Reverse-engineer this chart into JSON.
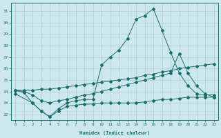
{
  "xlabel": "Humidex (Indice chaleur)",
  "bg_color": "#cde8ec",
  "grid_color": "#b0cdd2",
  "line_color": "#1a6e6a",
  "xlim": [
    -0.5,
    23.5
  ],
  "ylim": [
    21.5,
    31.7
  ],
  "xticks": [
    0,
    1,
    2,
    3,
    4,
    5,
    6,
    7,
    8,
    9,
    10,
    11,
    12,
    13,
    14,
    15,
    16,
    17,
    18,
    19,
    20,
    21,
    22,
    23
  ],
  "yticks": [
    22,
    23,
    24,
    25,
    26,
    27,
    28,
    29,
    30,
    31
  ],
  "series1_x": [
    0,
    1,
    2,
    3,
    4,
    5,
    6,
    7,
    8,
    9,
    10,
    11,
    12,
    13,
    14,
    15,
    16,
    17,
    18,
    19,
    20,
    21,
    22,
    23
  ],
  "series1_y": [
    24.1,
    23.9,
    23.0,
    22.3,
    21.8,
    22.5,
    23.0,
    23.2,
    23.3,
    23.3,
    26.3,
    27.0,
    27.6,
    28.6,
    30.3,
    30.6,
    31.2,
    29.3,
    27.4,
    25.6,
    24.5,
    23.8,
    23.7,
    23.7
  ],
  "series2_x": [
    0,
    1,
    2,
    3,
    4,
    5,
    6,
    7,
    8,
    9,
    10,
    11,
    12,
    13,
    14,
    15,
    16,
    17,
    18,
    19,
    20,
    21,
    22,
    23
  ],
  "series2_y": [
    24.1,
    24.1,
    24.1,
    24.2,
    24.2,
    24.3,
    24.4,
    24.5,
    24.6,
    24.7,
    24.8,
    24.9,
    25.0,
    25.1,
    25.2,
    25.4,
    25.5,
    25.7,
    25.8,
    26.0,
    26.1,
    26.2,
    26.3,
    26.4
  ],
  "series3_x": [
    0,
    1,
    2,
    3,
    4,
    5,
    6,
    7,
    8,
    9,
    10,
    11,
    12,
    13,
    14,
    15,
    16,
    17,
    18,
    19,
    20,
    21,
    22,
    23
  ],
  "series3_y": [
    24.1,
    24.0,
    23.7,
    23.2,
    23.0,
    23.2,
    23.3,
    23.5,
    23.7,
    23.8,
    24.0,
    24.2,
    24.4,
    24.6,
    24.8,
    25.0,
    25.2,
    25.4,
    25.6,
    27.3,
    25.6,
    24.5,
    23.8,
    23.5
  ],
  "series4_x": [
    0,
    2,
    3,
    4,
    5,
    6,
    7,
    8,
    9,
    10,
    11,
    12,
    13,
    14,
    15,
    16,
    17,
    18,
    19,
    20,
    21,
    22,
    23
  ],
  "series4_y": [
    23.8,
    23.0,
    22.3,
    21.8,
    22.3,
    22.7,
    22.8,
    22.9,
    22.9,
    23.0,
    23.0,
    23.0,
    23.0,
    23.0,
    23.1,
    23.2,
    23.3,
    23.3,
    23.4,
    23.5,
    23.5,
    23.5,
    23.5
  ]
}
